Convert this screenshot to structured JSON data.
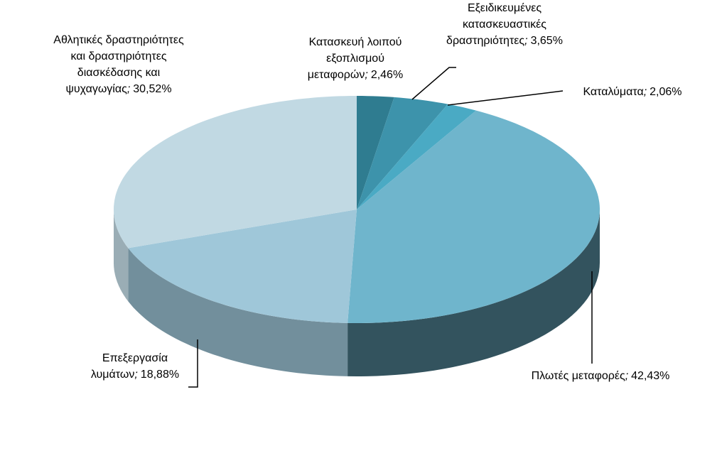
{
  "chart_data": {
    "type": "pie3d",
    "categories": [
      "Κατασκευή λοιπού εξοπλισμού μεταφορών",
      "Εξειδικευμένες κατασκευαστικές δραστηριότητες",
      "Καταλύματα",
      "Πλωτές μεταφορές",
      "Επεξεργασία λυμάτων",
      "Αθλητικές δραστηριότητες και δραστηριότητες διασκέδασης και ψυχαγωγίας"
    ],
    "values": [
      2.46,
      3.65,
      2.06,
      42.43,
      18.88,
      30.52
    ],
    "value_labels": [
      "2,46%",
      "3,65%",
      "2,06%",
      "42,43%",
      "18,88%",
      "30,52%"
    ],
    "label_separator": ";",
    "colors": [
      "#2f7c90",
      "#3d93ab",
      "#4aaac4",
      "#6fb5cc",
      "#9fc7d9",
      "#c1d9e3"
    ]
  }
}
